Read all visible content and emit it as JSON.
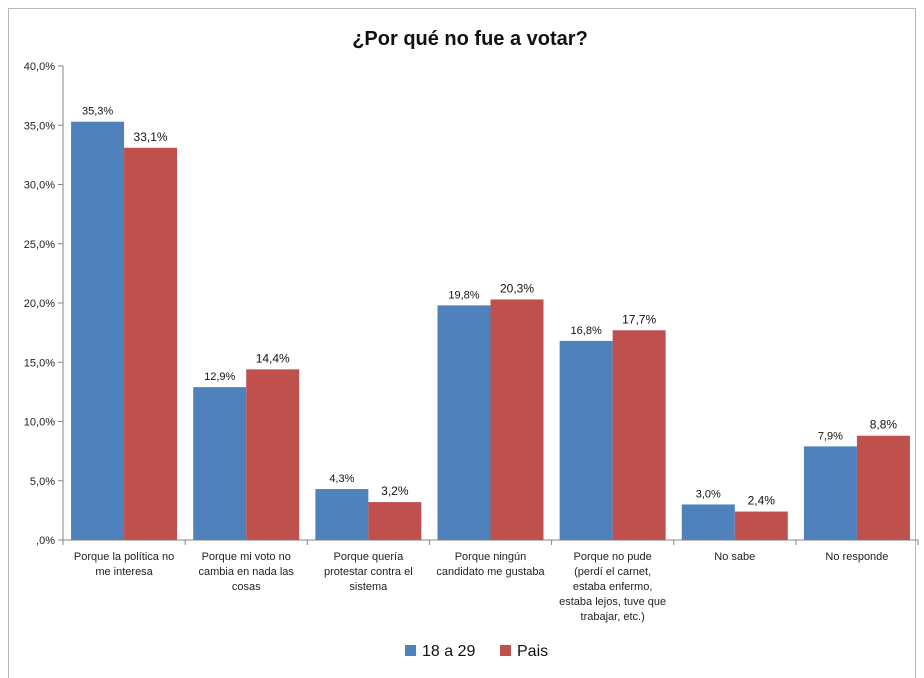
{
  "chart_data": {
    "type": "bar",
    "title": "¿Por qué no fue a votar?",
    "categories": [
      [
        "Porque la política no",
        "me interesa"
      ],
      [
        "Porque mi voto no",
        "cambia en nada las",
        "cosas"
      ],
      [
        "Porque quería",
        "protestar contra el",
        "sistema"
      ],
      [
        "Porque ningún",
        "candidato me gustaba"
      ],
      [
        "Porque no pude",
        "(perdí el carnet,",
        "estaba enfermo,",
        "estaba lejos, tuve que",
        "trabajar, etc.)"
      ],
      [
        "No sabe"
      ],
      [
        "No responde"
      ]
    ],
    "series": [
      {
        "name": "18 a 29",
        "color": "#4F81BD",
        "values": [
          35.3,
          12.9,
          4.3,
          19.8,
          16.8,
          3.0,
          7.9
        ],
        "labels": [
          "35,3%",
          "12,9%",
          "4,3%",
          "19,8%",
          "16,8%",
          "3,0%",
          "7,9%"
        ]
      },
      {
        "name": "Pais",
        "color": "#C0504D",
        "values": [
          33.1,
          14.4,
          3.2,
          20.3,
          17.7,
          2.4,
          8.8
        ],
        "labels": [
          "33,1%",
          "14,4%",
          "3,2%",
          "20,3%",
          "17,7%",
          "2,4%",
          "8,8%"
        ]
      }
    ],
    "ylim": [
      0,
      40
    ],
    "yticks": [
      {
        "value": 40,
        "label": "40,0%"
      },
      {
        "value": 35,
        "label": "35,0%"
      },
      {
        "value": 30,
        "label": "30,0%"
      },
      {
        "value": 25,
        "label": "25,0%"
      },
      {
        "value": 20,
        "label": "20,0%"
      },
      {
        "value": 15,
        "label": "15,0%"
      },
      {
        "value": 10,
        "label": "10,0%"
      },
      {
        "value": 5,
        "label": "5,0%"
      },
      {
        "value": 0,
        "label": ",0%"
      }
    ],
    "grid": false,
    "legend_position": "bottom"
  }
}
